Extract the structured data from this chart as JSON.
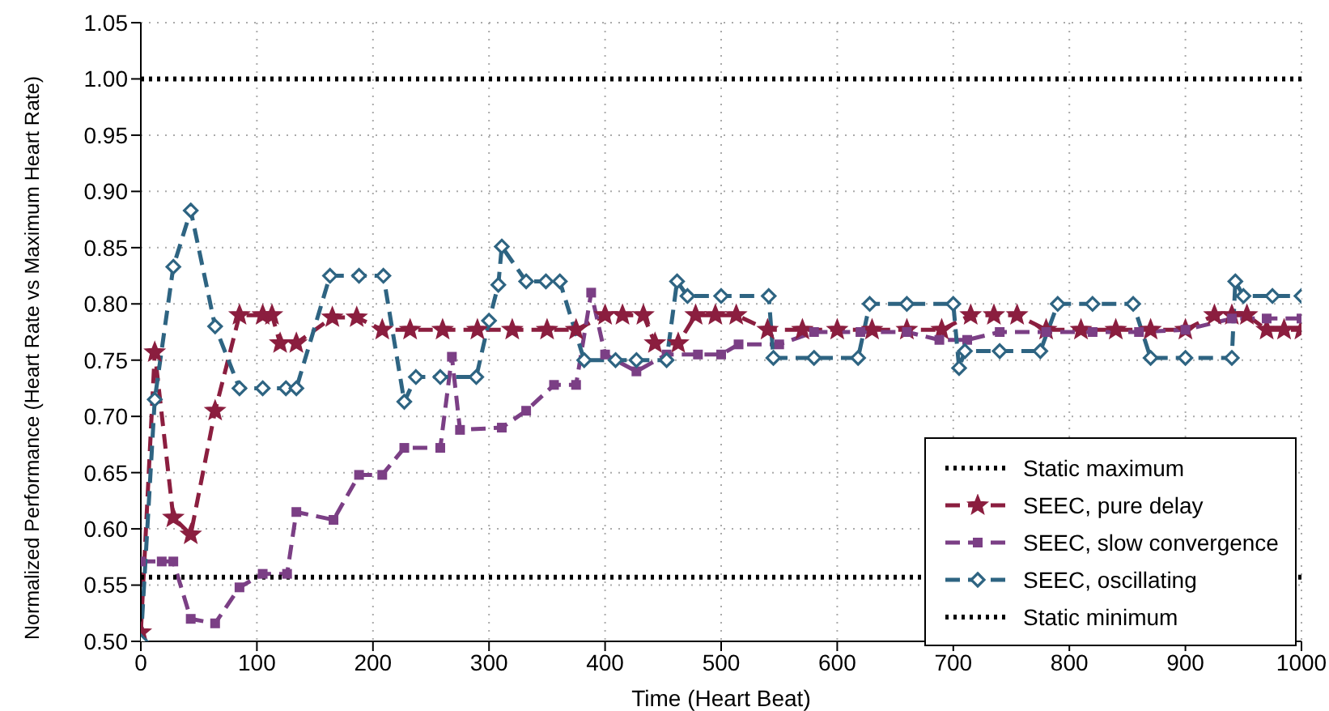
{
  "chart_data": {
    "type": "line",
    "xlabel": "Time (Heart Beat)",
    "ylabel": "Normalized Performance (Heart Rate vs Maximum Heart Rate)",
    "xlim": [
      0,
      1000
    ],
    "ylim": [
      0.5,
      1.05
    ],
    "xticks": [
      0,
      100,
      200,
      300,
      400,
      500,
      600,
      700,
      800,
      900,
      1000
    ],
    "yticks": [
      {
        "value": 0.5,
        "label": "0.50"
      },
      {
        "value": 0.55,
        "label": "0.55"
      },
      {
        "value": 0.6,
        "label": "0.60"
      },
      {
        "value": 0.65,
        "label": "0.65"
      },
      {
        "value": 0.7,
        "label": "0.70"
      },
      {
        "value": 0.75,
        "label": "0.75"
      },
      {
        "value": 0.8,
        "label": "0.80"
      },
      {
        "value": 0.85,
        "label": "0.85"
      },
      {
        "value": 0.9,
        "label": "0.90"
      },
      {
        "value": 0.95,
        "label": "0.95"
      },
      {
        "value": 1,
        "label": "1.00"
      },
      {
        "value": 1.05,
        "label": "1.05"
      }
    ],
    "grid": true,
    "legend": "bottom right",
    "series": [
      {
        "name": "Static maximum",
        "color": "#000000",
        "line_style": "dotted",
        "marker": "none",
        "x": [
          0,
          1000
        ],
        "values": [
          1,
          1
        ]
      },
      {
        "name": "SEEC, pure delay",
        "color": "#8b1e3f",
        "line_style": "dashed",
        "marker": "star",
        "x": [
          0,
          12,
          28,
          43,
          64,
          85,
          105,
          113,
          120,
          134,
          165,
          186,
          208,
          232,
          260,
          290,
          320,
          350,
          375,
          400,
          415,
          433,
          443,
          463,
          478,
          495,
          513,
          540,
          570,
          600,
          630,
          660,
          690,
          715,
          735,
          755,
          780,
          810,
          840,
          870,
          900,
          925,
          940,
          953,
          970,
          985,
          1000
        ],
        "values": [
          0.508,
          0.757,
          0.61,
          0.595,
          0.705,
          0.79,
          0.79,
          0.79,
          0.765,
          0.765,
          0.788,
          0.788,
          0.777,
          0.777,
          0.777,
          0.777,
          0.777,
          0.777,
          0.777,
          0.79,
          0.79,
          0.79,
          0.765,
          0.765,
          0.79,
          0.79,
          0.79,
          0.777,
          0.777,
          0.777,
          0.777,
          0.777,
          0.777,
          0.79,
          0.79,
          0.79,
          0.777,
          0.777,
          0.777,
          0.777,
          0.777,
          0.79,
          0.79,
          0.79,
          0.777,
          0.777,
          0.777
        ]
      },
      {
        "name": "SEEC, slow convergence",
        "color": "#7b3f85",
        "line_style": "dashed",
        "marker": "square",
        "x": [
          0,
          18,
          28,
          43,
          64,
          85,
          105,
          126,
          134,
          166,
          188,
          208,
          227,
          258,
          268,
          275,
          311,
          332,
          356,
          375,
          388,
          400,
          427,
          453,
          480,
          500,
          515,
          550,
          580,
          620,
          660,
          688,
          712,
          740,
          780,
          820,
          860,
          900,
          940,
          970,
          1000
        ],
        "values": [
          0.571,
          0.571,
          0.571,
          0.52,
          0.516,
          0.548,
          0.56,
          0.56,
          0.615,
          0.608,
          0.648,
          0.648,
          0.672,
          0.672,
          0.753,
          0.688,
          0.69,
          0.705,
          0.728,
          0.728,
          0.81,
          0.755,
          0.74,
          0.755,
          0.755,
          0.755,
          0.764,
          0.764,
          0.775,
          0.775,
          0.775,
          0.768,
          0.768,
          0.775,
          0.775,
          0.775,
          0.775,
          0.777,
          0.787,
          0.787,
          0.787
        ]
      },
      {
        "name": "SEEC, oscillating",
        "color": "#2e6482",
        "line_style": "dashed",
        "marker": "diamond",
        "x": [
          0,
          12,
          28,
          43,
          64,
          85,
          105,
          125,
          134,
          163,
          188,
          209,
          227,
          237,
          258,
          289,
          300,
          308,
          311,
          332,
          349,
          361,
          382,
          409,
          427,
          453,
          462,
          471,
          500,
          541,
          545,
          580,
          618,
          628,
          660,
          700,
          705,
          710,
          740,
          775,
          790,
          820,
          855,
          870,
          900,
          940,
          943,
          950,
          975,
          1000
        ],
        "values": [
          0.5,
          0.715,
          0.833,
          0.883,
          0.78,
          0.725,
          0.725,
          0.725,
          0.725,
          0.825,
          0.825,
          0.825,
          0.713,
          0.735,
          0.735,
          0.735,
          0.785,
          0.817,
          0.851,
          0.82,
          0.82,
          0.82,
          0.75,
          0.75,
          0.75,
          0.75,
          0.82,
          0.807,
          0.807,
          0.807,
          0.752,
          0.752,
          0.752,
          0.8,
          0.8,
          0.8,
          0.743,
          0.758,
          0.758,
          0.758,
          0.8,
          0.8,
          0.8,
          0.752,
          0.752,
          0.752,
          0.82,
          0.807,
          0.807,
          0.807
        ]
      },
      {
        "name": "Static minimum",
        "color": "#000000",
        "line_style": "dotted",
        "marker": "none",
        "x": [
          0,
          1000
        ],
        "values": [
          0.557,
          0.557
        ]
      }
    ]
  }
}
